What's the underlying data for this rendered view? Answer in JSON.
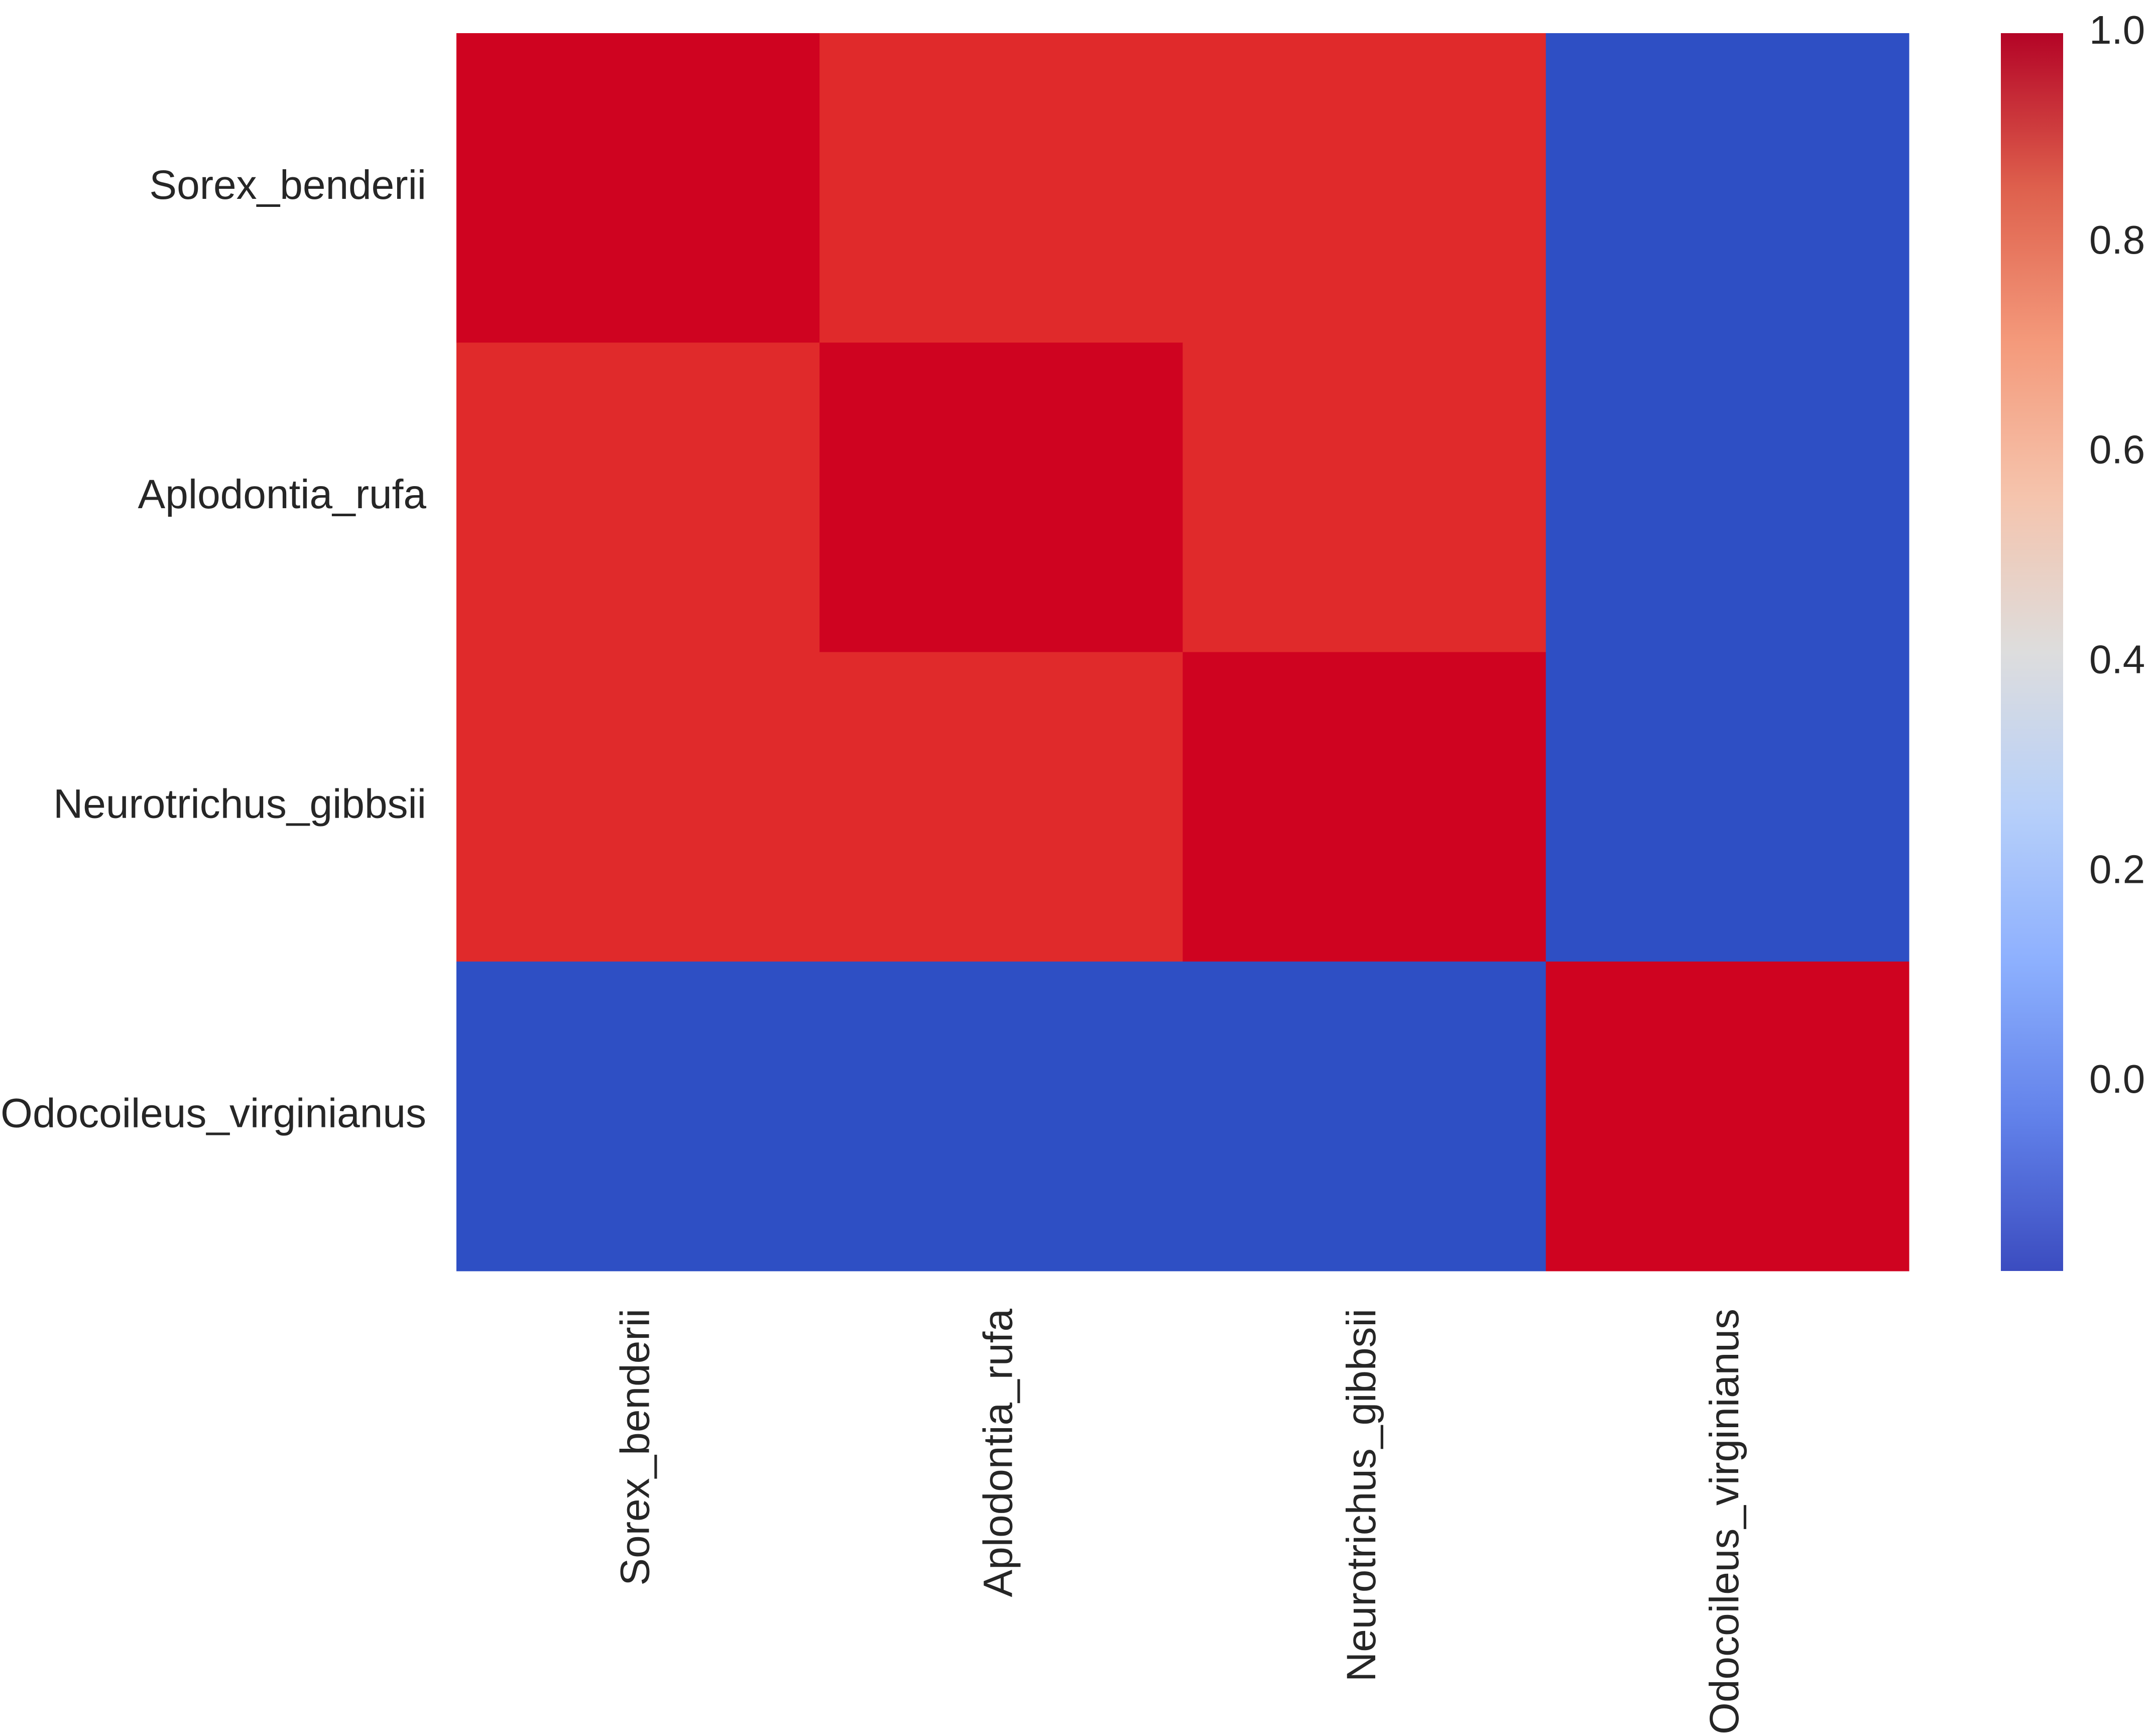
{
  "chart_data": {
    "type": "heatmap",
    "title": "",
    "xlabel": "",
    "ylabel": "",
    "rows": [
      "Sorex_benderii",
      "Aplodontia_rufa",
      "Neurotrichus_gibbsii",
      "Odocoileus_virginianus"
    ],
    "columns": [
      "Sorex_benderii",
      "Aplodontia_rufa",
      "Neurotrichus_gibbsii",
      "Odocoileus_virginianus"
    ],
    "values": [
      [
        1.0,
        0.96,
        0.96,
        -0.18
      ],
      [
        0.96,
        1.0,
        0.94,
        -0.18
      ],
      [
        0.96,
        0.94,
        1.0,
        -0.18
      ],
      [
        -0.18,
        -0.18,
        -0.18,
        1.0
      ]
    ],
    "colormap": "coolwarm",
    "colorbar": {
      "vmin": -0.18,
      "vmax": 1.0,
      "ticks": [
        0.0,
        0.2,
        0.4,
        0.6,
        0.8,
        1.0
      ],
      "tick_labels": [
        "0.0",
        "0.2",
        "0.4",
        "0.6",
        "0.8",
        "1.0"
      ],
      "position": "right"
    },
    "grid": false
  }
}
